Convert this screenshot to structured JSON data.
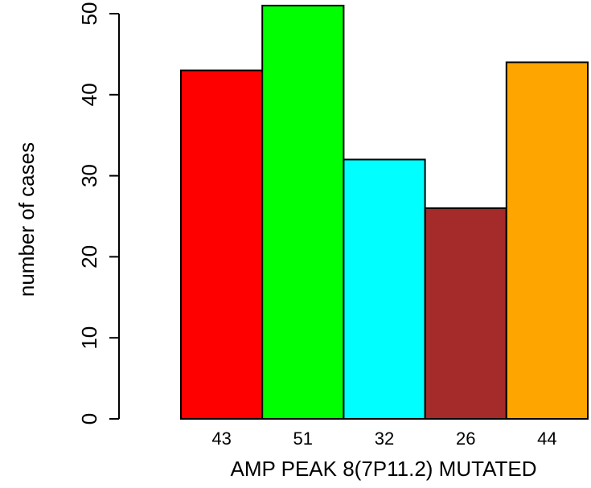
{
  "chart_data": {
    "type": "bar",
    "categories": [
      "43",
      "51",
      "32",
      "26",
      "44"
    ],
    "values": [
      43,
      51,
      32,
      26,
      44
    ],
    "colors": [
      "#ff0000",
      "#00ff00",
      "#00ffff",
      "#a52a2a",
      "#ffa500"
    ],
    "xlabel": "AMP PEAK  8(7P11.2) MUTATED",
    "ylabel": "number of cases",
    "ylim": [
      0,
      50
    ],
    "yticks": [
      "0",
      "10",
      "20",
      "30",
      "40",
      "50"
    ],
    "grid": false,
    "legend": "none"
  }
}
